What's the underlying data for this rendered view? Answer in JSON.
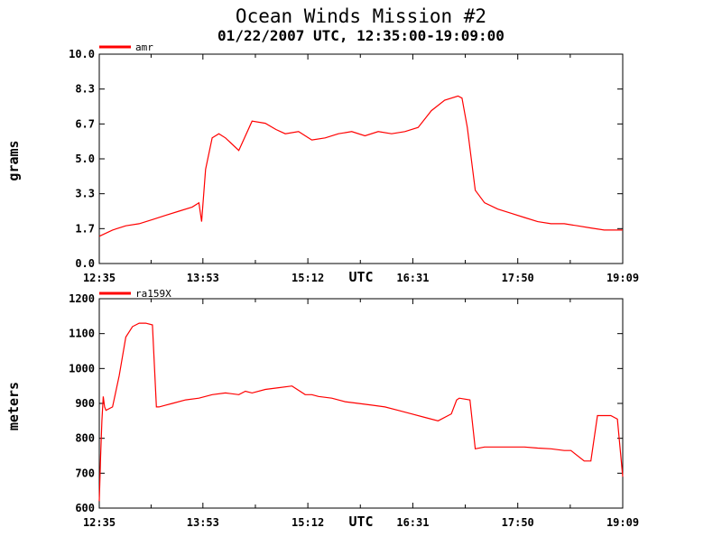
{
  "title": "Ocean Winds Mission #2",
  "subtitle": "01/22/2007  UTC, 12:35:00-19:09:00",
  "colors": {
    "series": "#ff0000",
    "axis": "#000000",
    "background": "#ffffff"
  },
  "chart_data": [
    {
      "type": "line",
      "ylabel": "grams",
      "xlabel": "UTC",
      "x_ticks": [
        "12:35",
        "13:53",
        "15:12",
        "16:31",
        "17:50",
        "19:09"
      ],
      "y_ticks": [
        "0.0",
        "1.7",
        "3.3",
        "5.0",
        "6.7",
        "8.3",
        "10.0"
      ],
      "xlim": [
        "12:35",
        "19:09"
      ],
      "ylim": [
        0,
        10
      ],
      "grid": false,
      "legend_placement": "top-left",
      "series": [
        {
          "name": "amr",
          "x": [
            "12:35",
            "12:45",
            "12:55",
            "13:05",
            "13:15",
            "13:25",
            "13:35",
            "13:45",
            "13:50",
            "13:52",
            "13:55",
            "14:00",
            "14:05",
            "14:10",
            "14:20",
            "14:30",
            "14:40",
            "14:48",
            "14:55",
            "15:05",
            "15:15",
            "15:25",
            "15:35",
            "15:45",
            "15:55",
            "16:05",
            "16:15",
            "16:25",
            "16:35",
            "16:45",
            "16:55",
            "17:05",
            "17:08",
            "17:12",
            "17:18",
            "17:25",
            "17:35",
            "17:45",
            "17:55",
            "18:05",
            "18:15",
            "18:25",
            "18:35",
            "18:45",
            "18:55",
            "19:05",
            "19:09"
          ],
          "y": [
            1.3,
            1.6,
            1.8,
            1.9,
            2.1,
            2.3,
            2.5,
            2.7,
            2.9,
            2.0,
            4.5,
            6.0,
            6.2,
            6.0,
            5.4,
            6.8,
            6.7,
            6.4,
            6.2,
            6.3,
            5.9,
            6.0,
            6.2,
            6.3,
            6.1,
            6.3,
            6.2,
            6.3,
            6.5,
            7.3,
            7.8,
            8.0,
            7.9,
            6.5,
            3.5,
            2.9,
            2.6,
            2.4,
            2.2,
            2.0,
            1.9,
            1.9,
            1.8,
            1.7,
            1.6,
            1.6,
            1.6
          ]
        }
      ]
    },
    {
      "type": "line",
      "ylabel": "meters",
      "xlabel": "UTC",
      "x_ticks": [
        "12:35",
        "13:53",
        "15:12",
        "16:31",
        "17:50",
        "19:09"
      ],
      "y_ticks": [
        "600",
        "700",
        "800",
        "900",
        "1000",
        "1100",
        "1200"
      ],
      "xlim": [
        "12:35",
        "19:09"
      ],
      "ylim": [
        600,
        1200
      ],
      "grid": false,
      "legend_placement": "top-left",
      "series": [
        {
          "name": "ra159X",
          "x": [
            "12:35",
            "12:36",
            "12:37",
            "12:38",
            "12:39",
            "12:40",
            "12:45",
            "12:50",
            "12:55",
            "13:00",
            "13:05",
            "13:10",
            "13:15",
            "13:18",
            "13:20",
            "13:25",
            "13:30",
            "13:40",
            "13:50",
            "14:00",
            "14:10",
            "14:20",
            "14:25",
            "14:30",
            "14:40",
            "14:50",
            "15:00",
            "15:10",
            "15:15",
            "15:20",
            "15:30",
            "15:40",
            "15:50",
            "16:00",
            "16:10",
            "16:20",
            "16:30",
            "16:40",
            "16:50",
            "17:00",
            "17:04",
            "17:06",
            "17:14",
            "17:18",
            "17:25",
            "17:35",
            "17:45",
            "17:55",
            "18:05",
            "18:15",
            "18:25",
            "18:30",
            "18:40",
            "18:45",
            "18:50",
            "19:00",
            "19:05",
            "19:09"
          ],
          "y": [
            620,
            750,
            850,
            920,
            890,
            880,
            890,
            980,
            1090,
            1120,
            1130,
            1130,
            1125,
            890,
            890,
            895,
            900,
            910,
            915,
            925,
            930,
            925,
            935,
            930,
            940,
            945,
            950,
            925,
            925,
            920,
            915,
            905,
            900,
            895,
            890,
            880,
            870,
            860,
            850,
            870,
            910,
            915,
            910,
            770,
            775,
            775,
            775,
            775,
            772,
            770,
            765,
            765,
            735,
            735,
            865,
            865,
            855,
            690
          ]
        }
      ]
    }
  ]
}
